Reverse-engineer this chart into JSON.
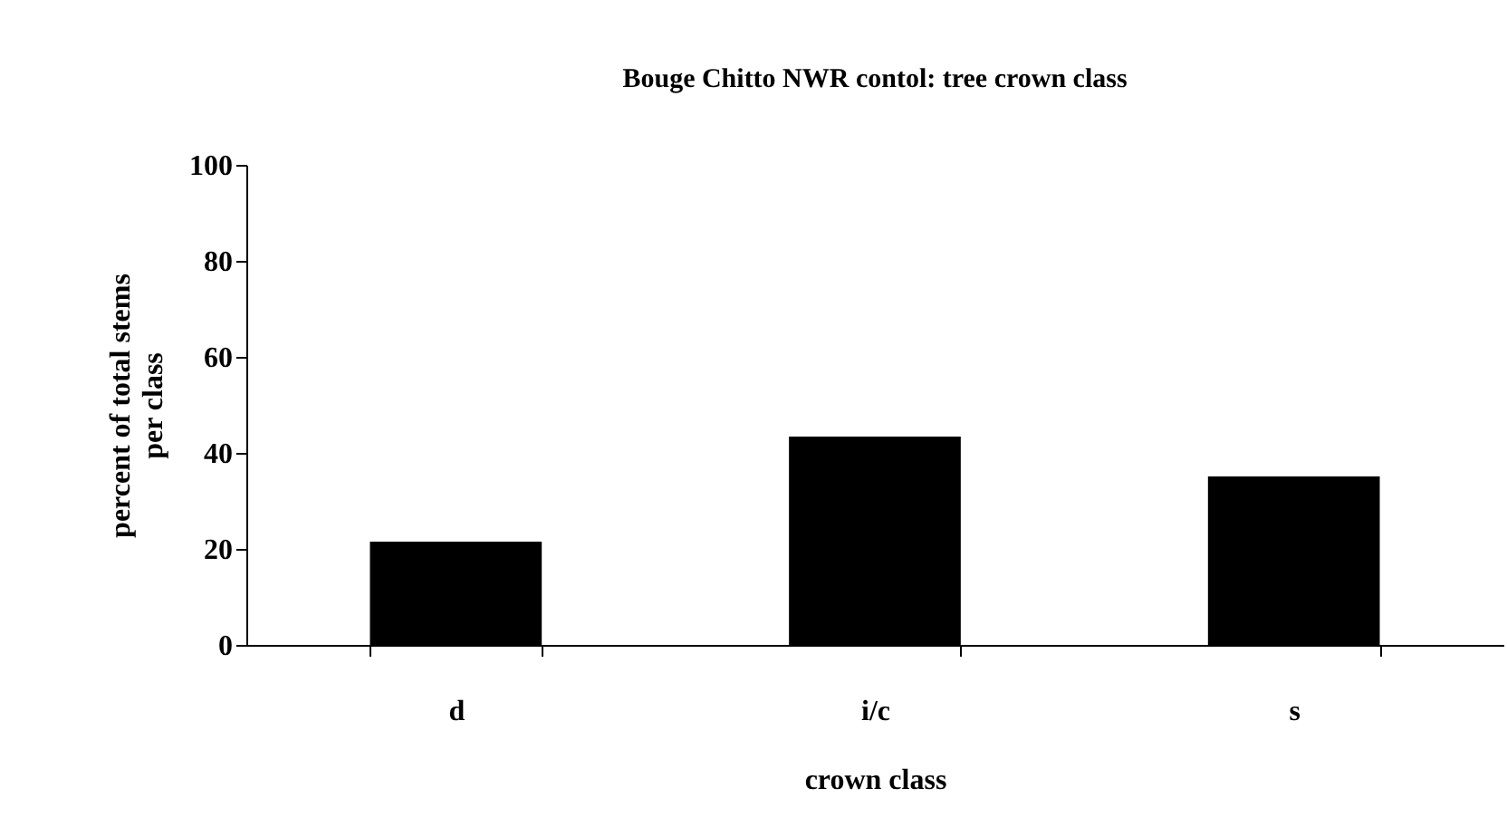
{
  "chart_data": {
    "type": "bar",
    "title": "Bouge Chitto NWR contol: tree crown class",
    "xlabel": "crown class",
    "ylabel": "percent of total stems\nper class",
    "categories": [
      "d",
      "i/c",
      "s"
    ],
    "values": [
      21.5,
      43.4,
      35.1
    ],
    "color": "#000000",
    "ylim": [
      0,
      100
    ],
    "yticks": [
      0,
      20,
      40,
      60,
      80,
      100
    ],
    "grid": false
  }
}
